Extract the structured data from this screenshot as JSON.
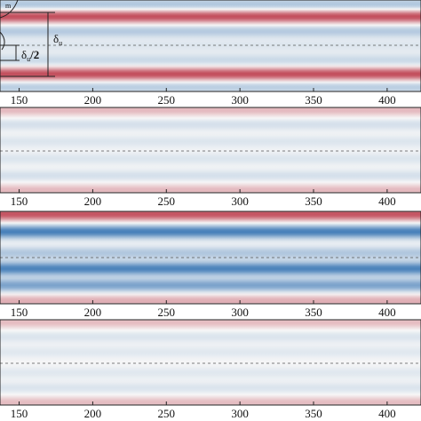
{
  "chart_data": [
    {
      "type": "heatmap",
      "panel": 1,
      "xlim": [
        137,
        423
      ],
      "xticks": [
        150,
        200,
        250,
        300,
        350,
        400
      ],
      "tick_labels": [
        "150",
        "200",
        "250",
        "300",
        "350",
        "400"
      ],
      "colormap": "blue-white-red diverging",
      "bands": [
        {
          "y": 0.05,
          "sign": -1,
          "amp_start": 0.35,
          "amp_end": 0.35
        },
        {
          "y": 0.18,
          "sign": 1,
          "amp_start": 0.55,
          "amp_end": 0.9
        },
        {
          "y": 0.34,
          "sign": -1,
          "amp_start": 0.35,
          "amp_end": 0.3
        },
        {
          "y": 0.5,
          "sign": -1,
          "amp_start": 0.15,
          "amp_end": 0.1
        },
        {
          "y": 0.66,
          "sign": -1,
          "amp_start": 0.25,
          "amp_end": 0.2
        },
        {
          "y": 0.81,
          "sign": 1,
          "amp_start": 0.55,
          "amp_end": 0.9
        },
        {
          "y": 0.95,
          "sign": -1,
          "amp_start": 0.3,
          "amp_end": 0.3
        }
      ],
      "annotations": {
        "delta_u": "δ",
        "delta_u_sub": "u",
        "half_delta": "δ",
        "half_delta_sub": "u",
        "half_delta_suffix": "/2",
        "corner_mark": "m"
      }
    },
    {
      "type": "heatmap",
      "panel": 2,
      "xlim": [
        137,
        423
      ],
      "xticks": [
        150,
        200,
        250,
        300,
        350,
        400
      ],
      "tick_labels": [
        "150",
        "200",
        "250",
        "300",
        "350",
        "400"
      ],
      "colormap": "blue-white-red diverging",
      "bands": [
        {
          "y": 0.03,
          "sign": 1,
          "amp_start": 0.25,
          "amp_end": 0.3
        },
        {
          "y": 0.2,
          "sign": -1,
          "amp_start": 0.18,
          "amp_end": 0.15
        },
        {
          "y": 0.4,
          "sign": -1,
          "amp_start": 0.14,
          "amp_end": 0.12
        },
        {
          "y": 0.6,
          "sign": -1,
          "amp_start": 0.14,
          "amp_end": 0.12
        },
        {
          "y": 0.8,
          "sign": -1,
          "amp_start": 0.18,
          "amp_end": 0.15
        },
        {
          "y": 0.97,
          "sign": 1,
          "amp_start": 0.25,
          "amp_end": 0.3
        }
      ]
    },
    {
      "type": "heatmap",
      "panel": 3,
      "xlim": [
        137,
        423
      ],
      "xticks": [
        150,
        200,
        250,
        300,
        350,
        400
      ],
      "tick_labels": [
        "150",
        "200",
        "250",
        "300",
        "350",
        "400"
      ],
      "colormap": "blue-white-red diverging",
      "bands": [
        {
          "y": 0.03,
          "sign": 1,
          "amp_start": 0.55,
          "amp_end": 0.85
        },
        {
          "y": 0.22,
          "sign": -1,
          "amp_start": 0.7,
          "amp_end": 0.9
        },
        {
          "y": 0.45,
          "sign": -1,
          "amp_start": 0.4,
          "amp_end": 0.3
        },
        {
          "y": 0.62,
          "sign": -1,
          "amp_start": 0.55,
          "amp_end": 0.95
        },
        {
          "y": 0.8,
          "sign": -1,
          "amp_start": 0.65,
          "amp_end": 0.55
        },
        {
          "y": 0.97,
          "sign": 1,
          "amp_start": 0.3,
          "amp_end": 0.35
        }
      ]
    },
    {
      "type": "heatmap",
      "panel": 4,
      "xlim": [
        137,
        423
      ],
      "xticks": [
        150,
        200,
        250,
        300,
        350,
        400
      ],
      "tick_labels": [
        "150",
        "200",
        "250",
        "300",
        "350",
        "400"
      ],
      "colormap": "blue-white-red diverging",
      "bands": [
        {
          "y": 0.03,
          "sign": 1,
          "amp_start": 0.2,
          "amp_end": 0.3
        },
        {
          "y": 0.2,
          "sign": -1,
          "amp_start": 0.15,
          "amp_end": 0.12
        },
        {
          "y": 0.38,
          "sign": -1,
          "amp_start": 0.12,
          "amp_end": 0.1
        },
        {
          "y": 0.62,
          "sign": -1,
          "amp_start": 0.12,
          "amp_end": 0.1
        },
        {
          "y": 0.8,
          "sign": -1,
          "amp_start": 0.15,
          "amp_end": 0.12
        },
        {
          "y": 0.97,
          "sign": 1,
          "amp_start": 0.2,
          "amp_end": 0.3
        }
      ]
    }
  ]
}
